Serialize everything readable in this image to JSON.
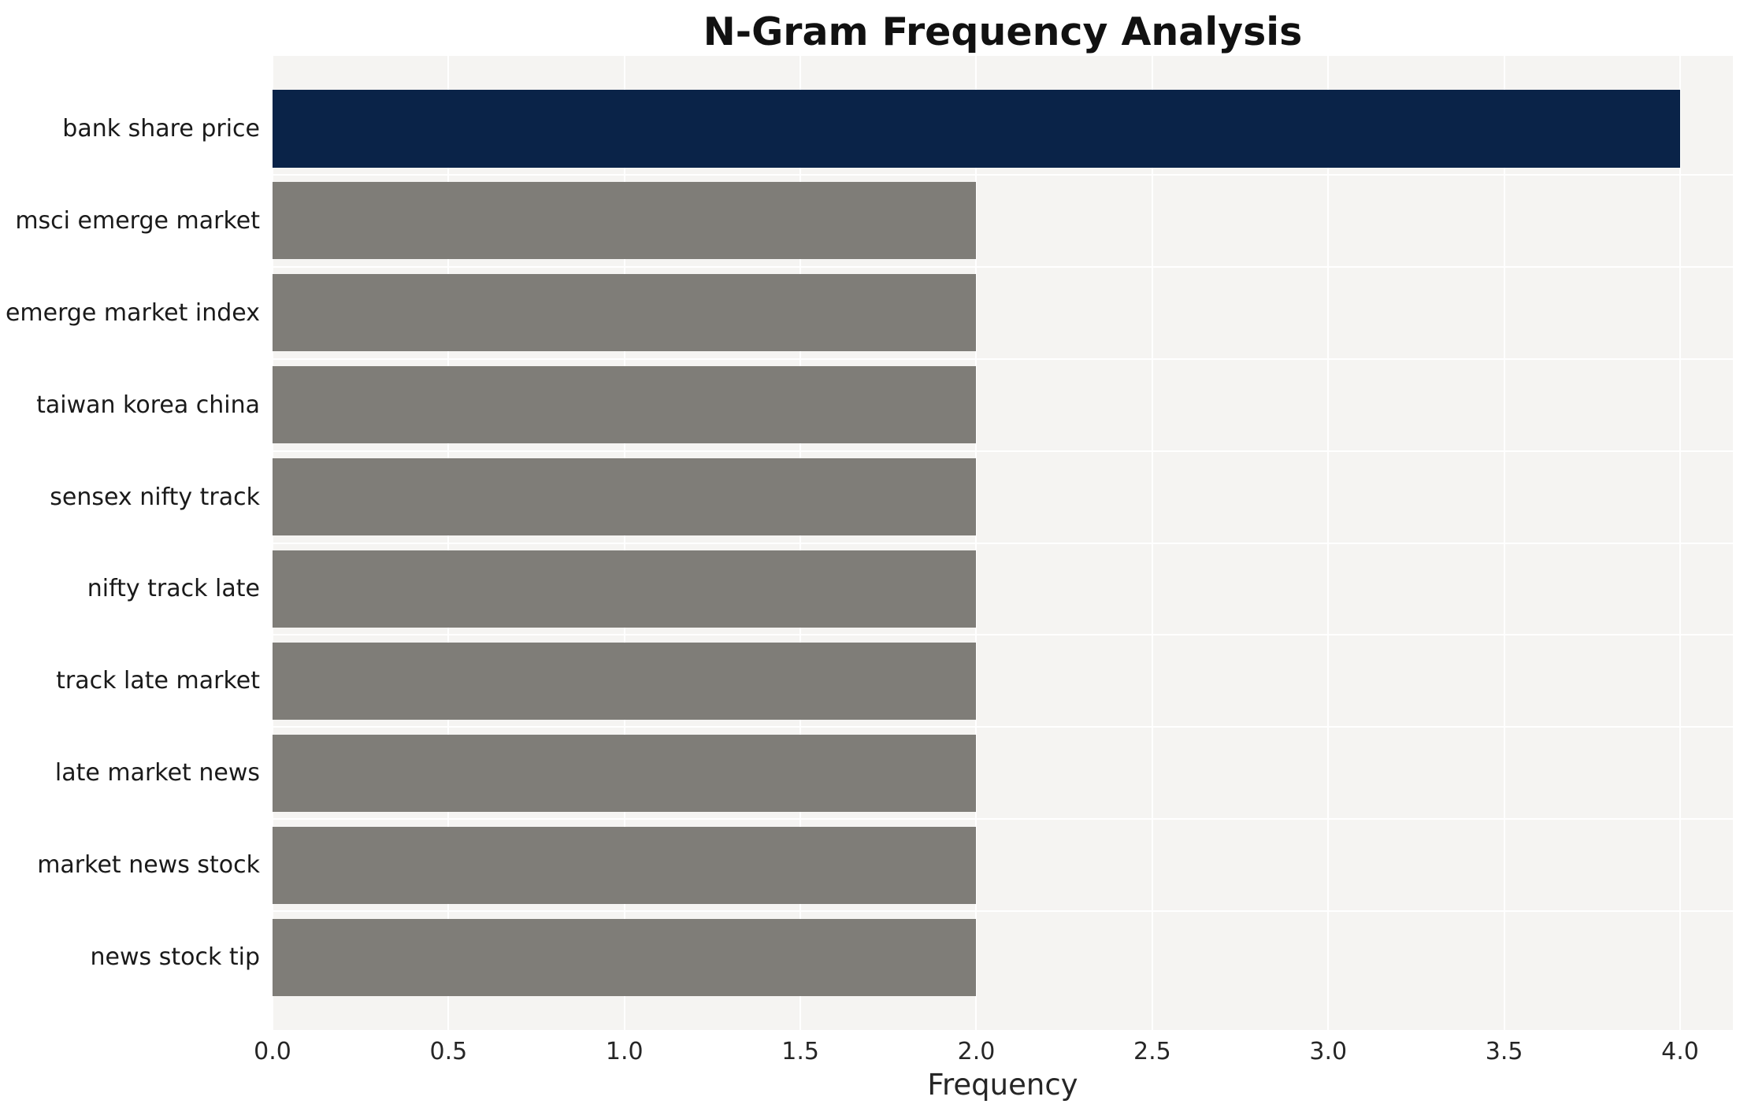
{
  "chart_data": {
    "type": "bar",
    "orientation": "horizontal",
    "title": "N-Gram Frequency Analysis",
    "xlabel": "Frequency",
    "ylabel": "",
    "categories": [
      "bank share price",
      "msci emerge market",
      "emerge market index",
      "taiwan korea china",
      "sensex nifty track",
      "nifty track late",
      "track late market",
      "late market news",
      "market news stock",
      "news stock tip"
    ],
    "values": [
      4,
      2,
      2,
      2,
      2,
      2,
      2,
      2,
      2,
      2
    ],
    "highlight_index": 0,
    "xlim": [
      0,
      4.15
    ],
    "xticks": [
      0.0,
      0.5,
      1.0,
      1.5,
      2.0,
      2.5,
      3.0,
      3.5,
      4.0
    ],
    "xtick_labels": [
      "0.0",
      "0.5",
      "1.0",
      "1.5",
      "2.0",
      "2.5",
      "3.0",
      "3.5",
      "4.0"
    ],
    "grid": true,
    "legend": false,
    "colors": {
      "highlight_bar": "#0a2348",
      "default_bar": "#7f7d78",
      "plot_background": "#f5f4f2",
      "gridline": "#ffffff",
      "title_text": "#111111",
      "axis_text": "#262626"
    }
  }
}
